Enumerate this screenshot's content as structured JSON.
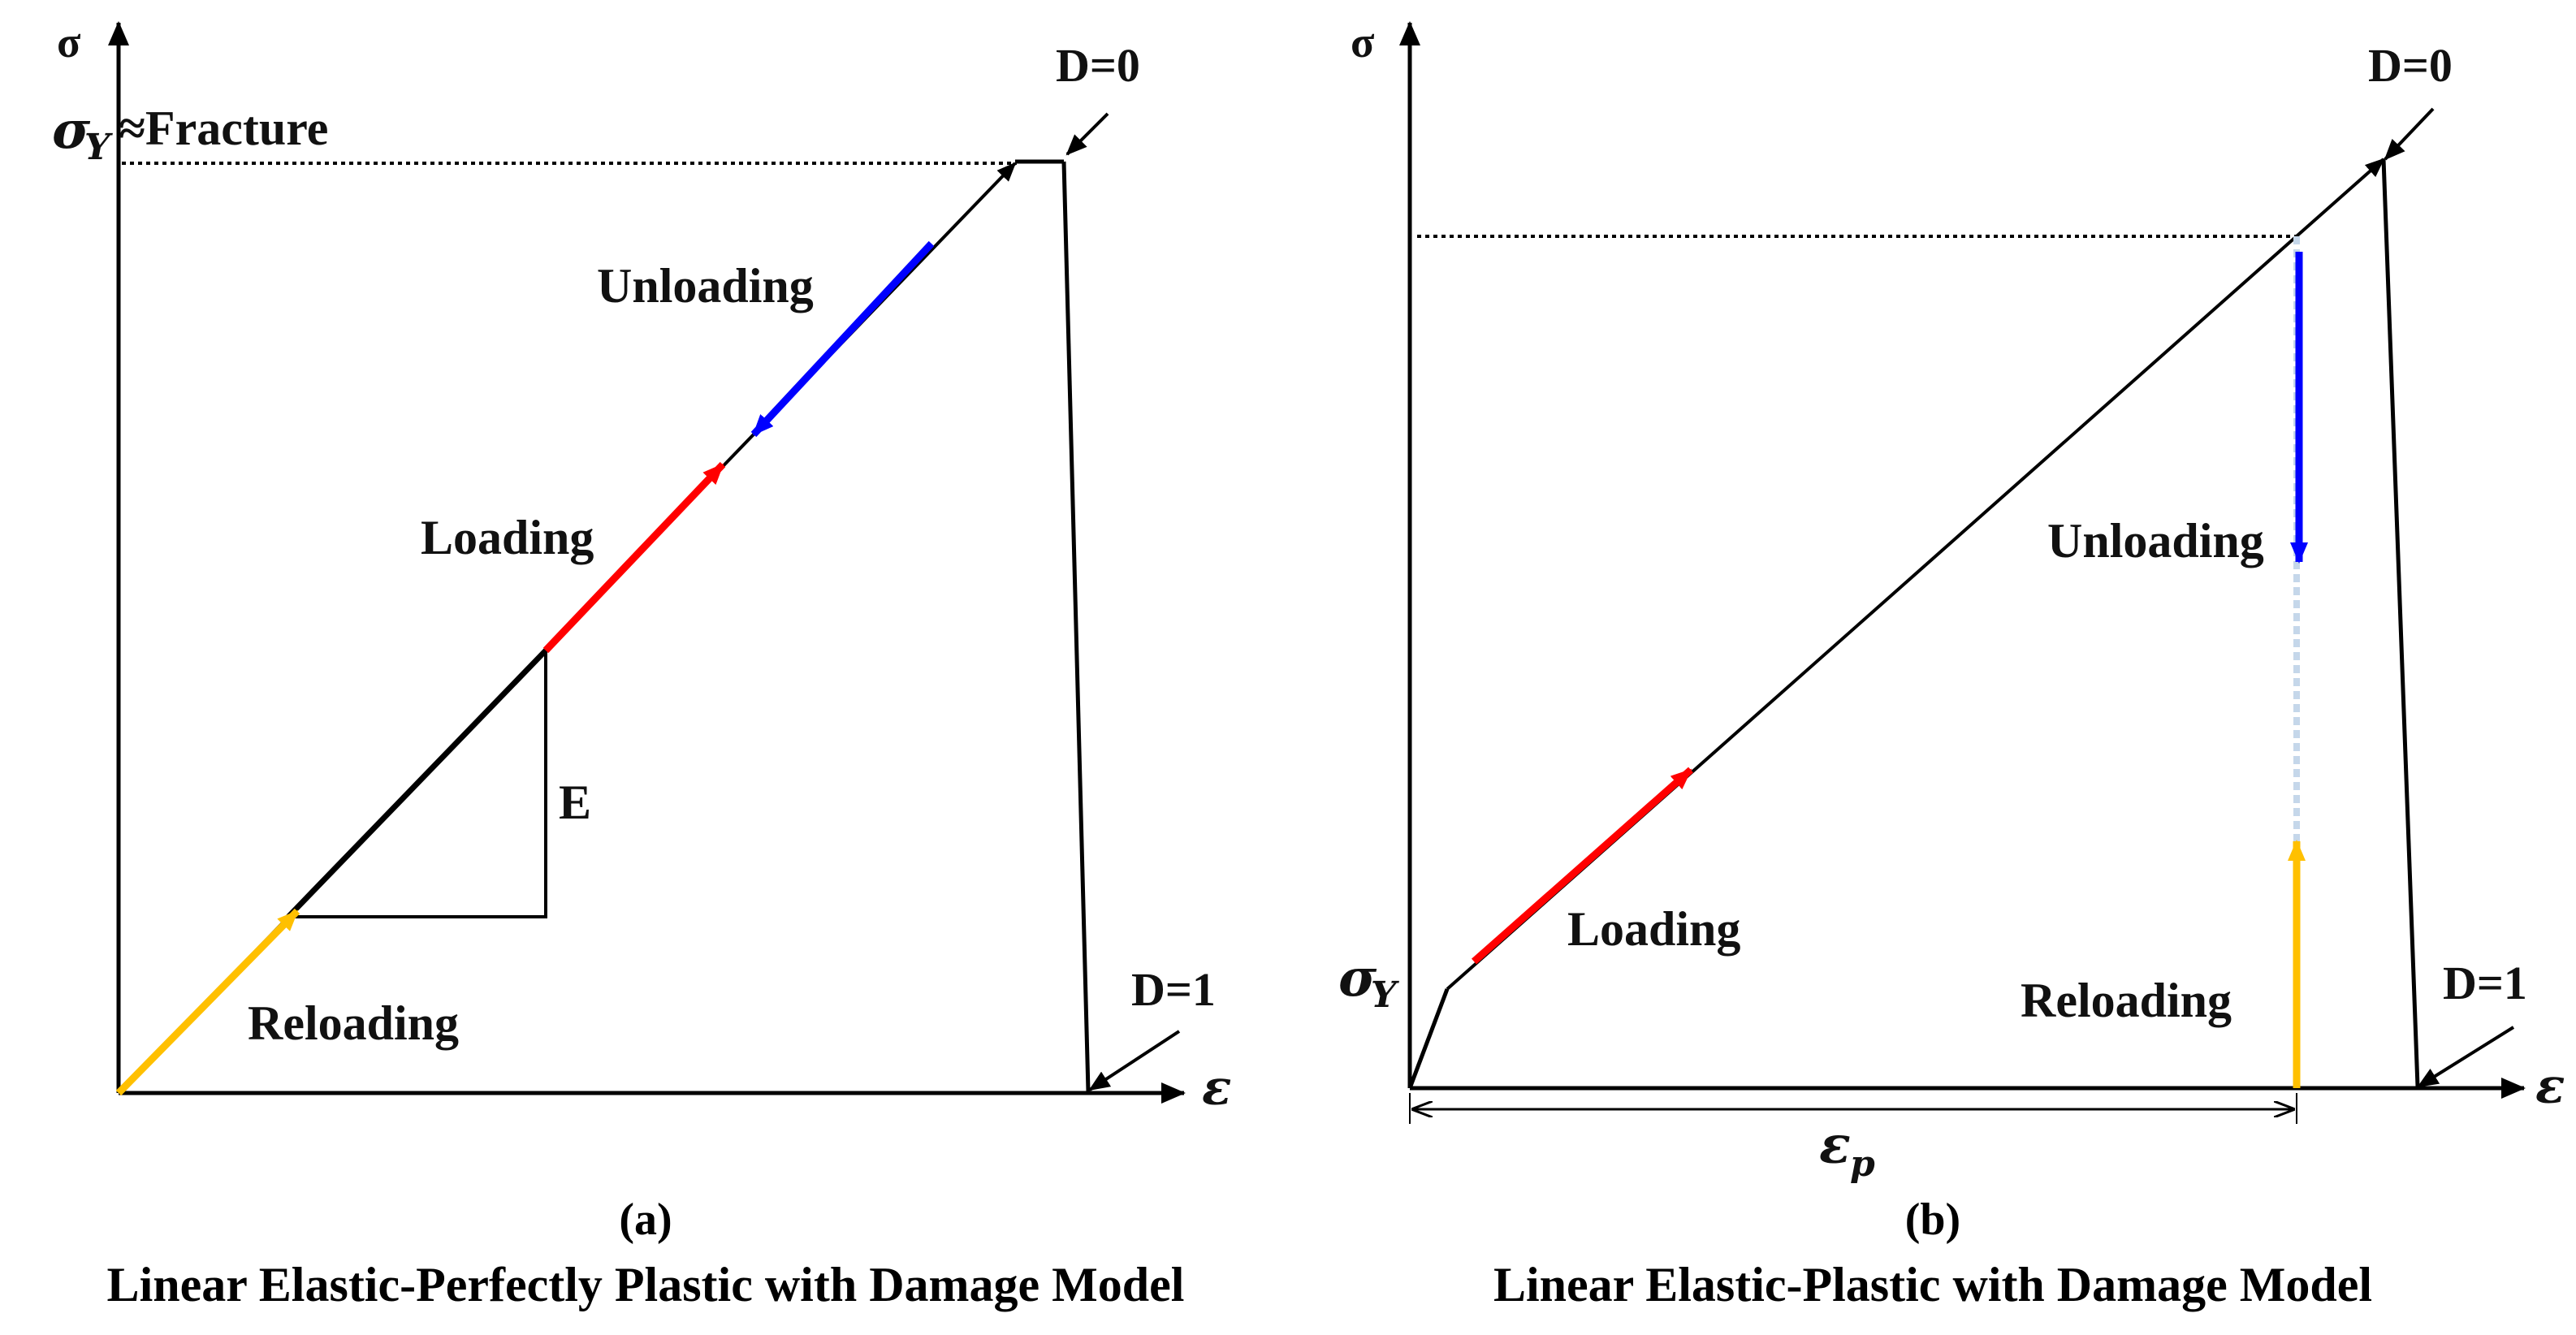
{
  "panel_a": {
    "y_axis_label": "σ",
    "x_axis_label": "ε",
    "yield_symbol": "σ",
    "yield_subscript": "Y",
    "yield_suffix": "≈Fracture",
    "damage_zero": "D=0",
    "damage_one": "D=1",
    "unloading": "Unloading",
    "loading": "Loading",
    "reloading": "Reloading",
    "modulus": "E",
    "panel_letter": "(a)",
    "caption": "Linear Elastic-Perfectly Plastic with Damage Model"
  },
  "panel_b": {
    "y_axis_label": "σ",
    "x_axis_label": "ε",
    "yield_symbol": "σ",
    "yield_subscript": "Y",
    "plastic_strain_symbol": "ε",
    "plastic_strain_subscript": "p",
    "damage_zero": "D=0",
    "damage_one": "D=1",
    "unloading": "Unloading",
    "loading": "Loading",
    "reloading": "Reloading",
    "panel_letter": "(b)",
    "caption": "Linear Elastic-Plastic with Damage Model"
  },
  "colors": {
    "curve": "#000000",
    "loading": "#ff0000",
    "unloading": "#0000ff",
    "reloading": "#ffc000",
    "unloading_trace": "#c5d7ea"
  }
}
